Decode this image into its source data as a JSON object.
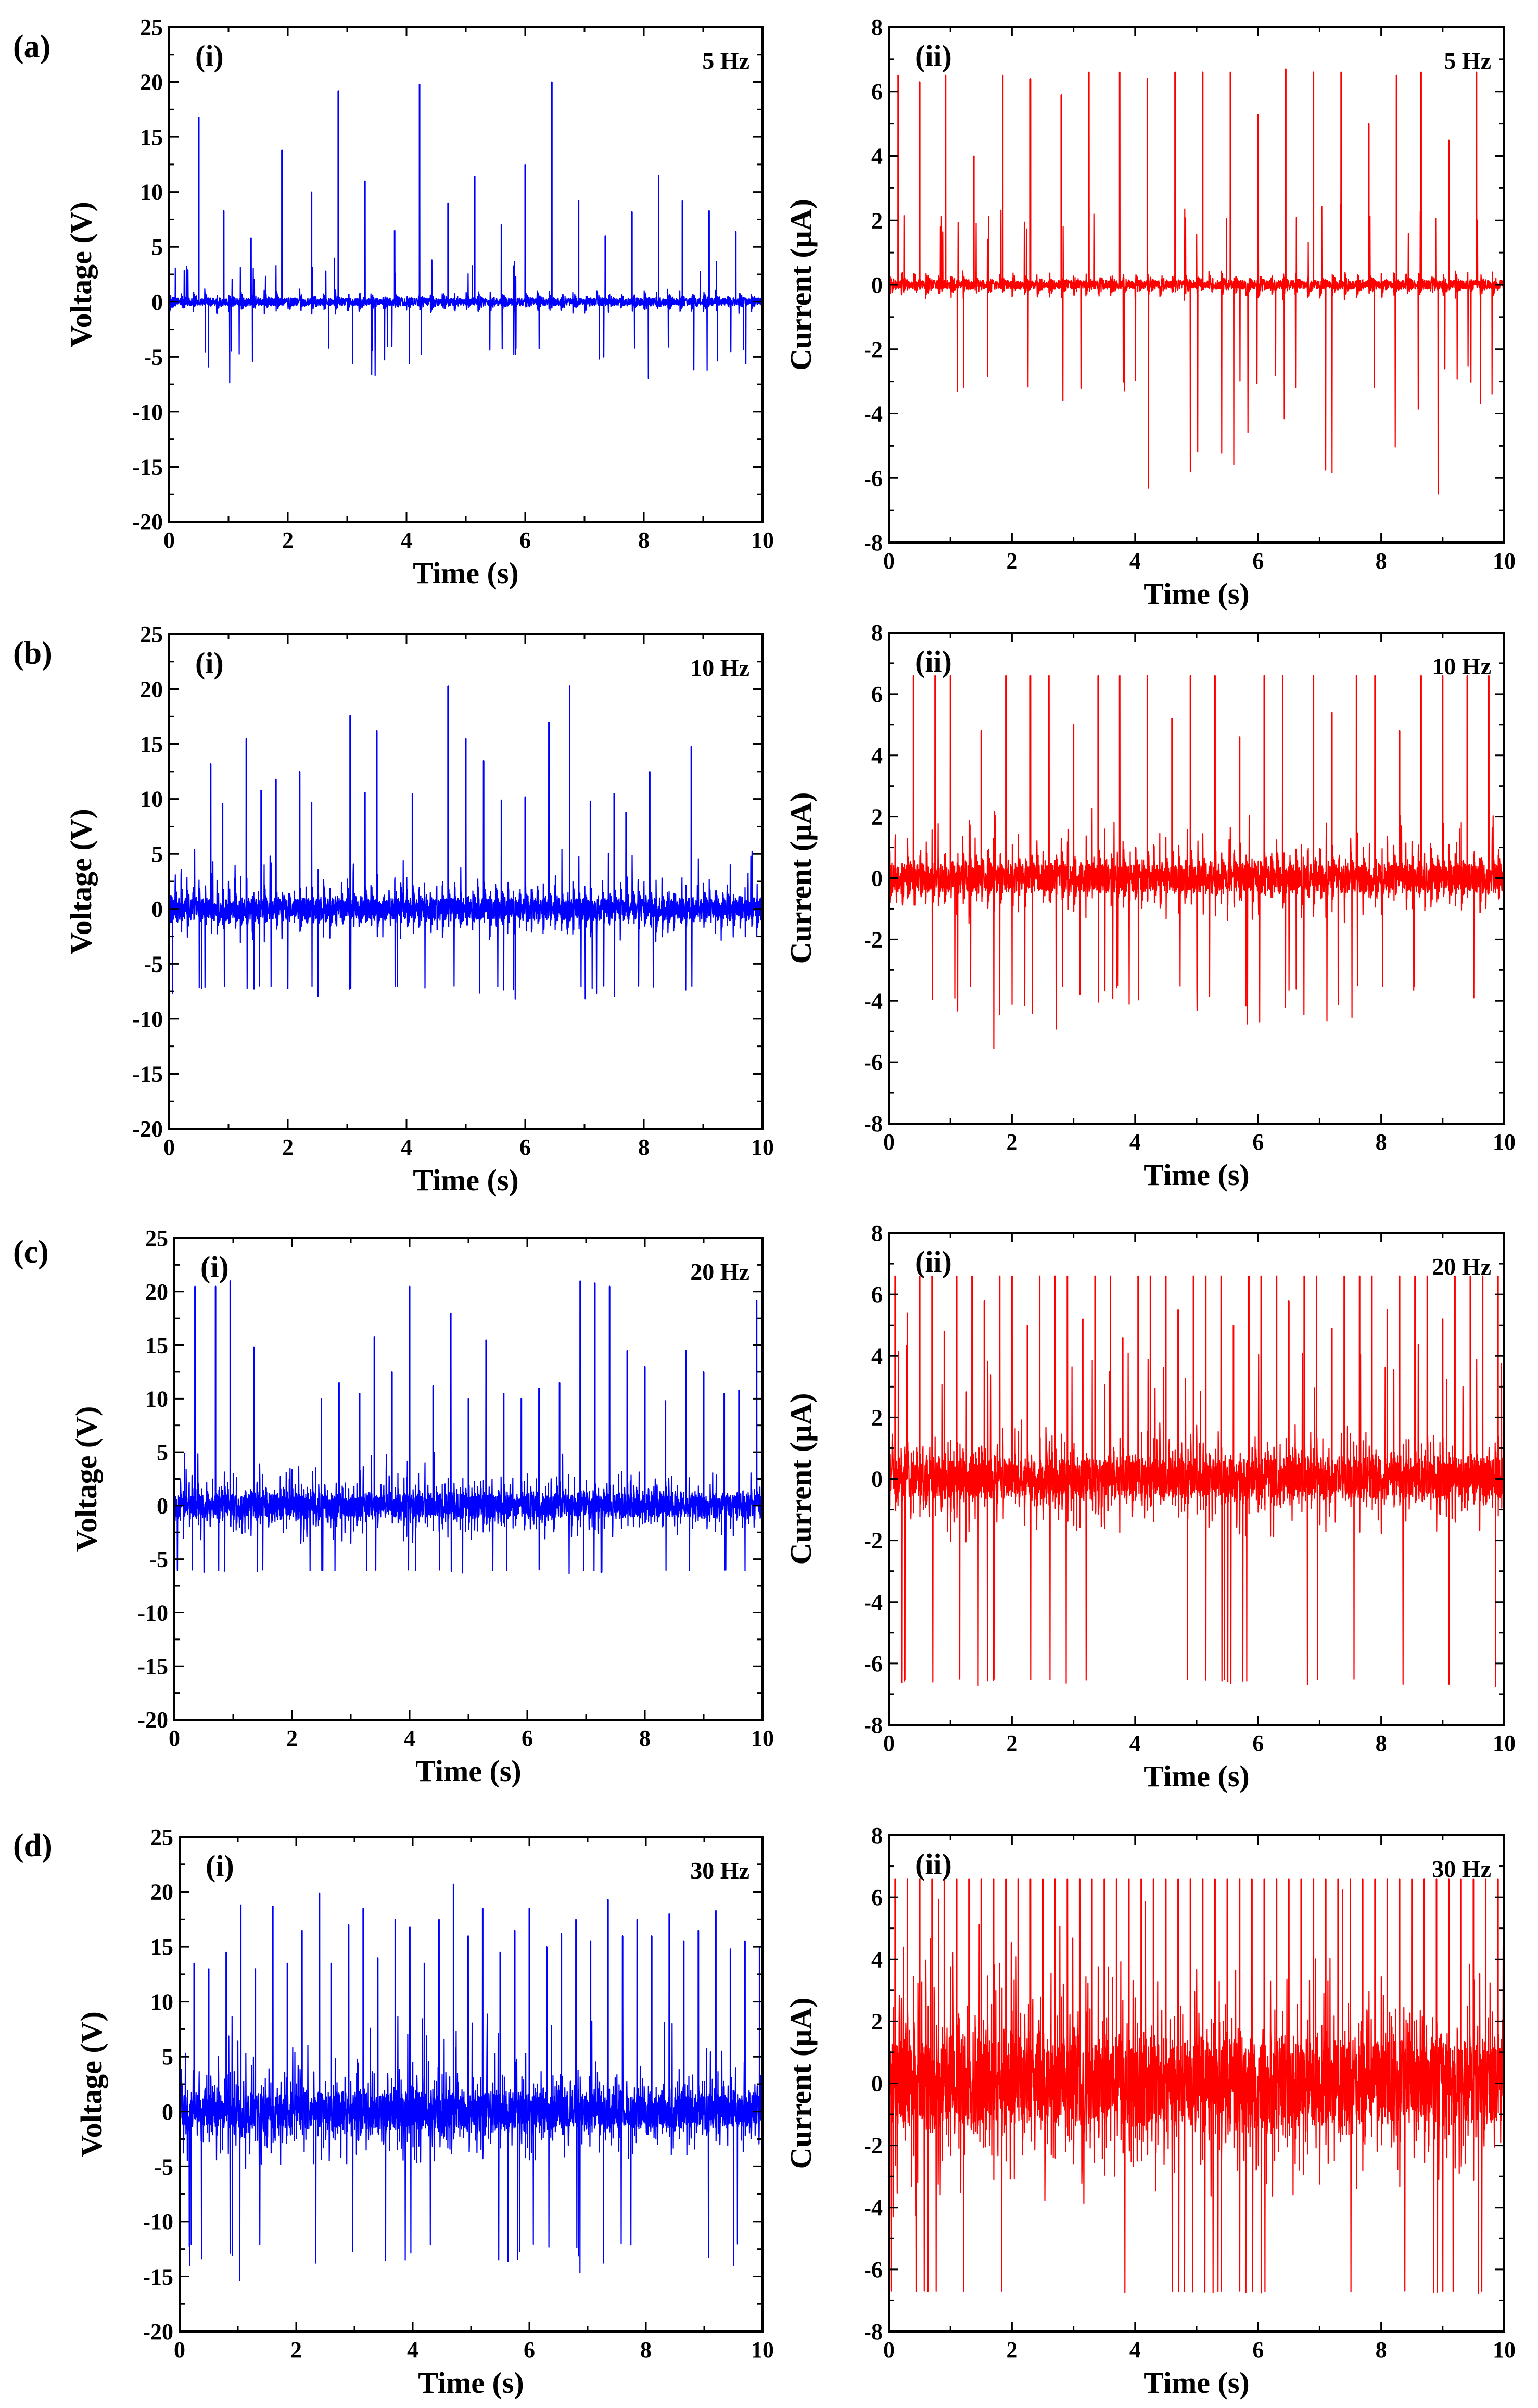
{
  "figure": {
    "panels": [
      {
        "label": "(a)"
      },
      {
        "label": "(b)"
      },
      {
        "label": "(c)"
      },
      {
        "label": "(d)"
      }
    ]
  },
  "chart_data": [
    {
      "type": "line",
      "panel": "(a)",
      "sublabel": "(i)",
      "annotation": "5 Hz",
      "title": "",
      "xlabel": "Time (s)",
      "ylabel": "Voltage (V)",
      "xlim": [
        0,
        10
      ],
      "ylim": [
        -20,
        25
      ],
      "xticks": [
        0,
        2,
        4,
        6,
        8,
        10
      ],
      "yticks": [
        -20,
        -15,
        -10,
        -5,
        0,
        5,
        10,
        15,
        20,
        25
      ],
      "color": "#0000ff",
      "signal": {
        "frequency_hz": 5,
        "baseline": 0,
        "noise_amplitude": 1.2,
        "burst_max": 4,
        "burst_min": -4,
        "spike_min": 6,
        "spike_max": 20,
        "negative_min": -7.5
      },
      "spike_times": [
        0.5,
        0.92,
        1.38,
        1.9,
        2.4,
        2.85,
        3.3,
        3.8,
        4.22,
        4.7,
        5.15,
        5.6,
        6.0,
        6.45,
        6.9,
        7.35,
        7.8,
        8.25,
        8.65,
        9.1,
        9.55
      ],
      "spike_values": [
        16.8,
        8.3,
        5.8,
        13.8,
        10.0,
        19.2,
        11.0,
        6.5,
        19.8,
        9.0,
        11.4,
        7.0,
        12.5,
        20.0,
        9.2,
        6.0,
        8.2,
        11.5,
        9.2,
        8.3,
        6.4
      ]
    },
    {
      "type": "line",
      "panel": "(a)",
      "sublabel": "(ii)",
      "annotation": "5 Hz",
      "title": "",
      "xlabel": "Time (s)",
      "ylabel": "Current (μA)",
      "xlim": [
        0,
        10
      ],
      "ylim": [
        -8,
        8
      ],
      "xticks": [
        0,
        2,
        4,
        6,
        8,
        10
      ],
      "yticks": [
        -8,
        -6,
        -4,
        -2,
        0,
        2,
        4,
        6,
        8
      ],
      "color": "#ff0000",
      "signal": {
        "frequency_hz": 5,
        "baseline": 0,
        "noise_amplitude": 0.5,
        "burst_max": 2.5,
        "burst_min": -2.5,
        "spike_min": 3.5,
        "spike_max": 6.7,
        "negative_min": -6.8
      },
      "spike_times": [
        0.15,
        0.5,
        0.92,
        1.38,
        1.85,
        2.3,
        2.8,
        3.25,
        3.75,
        4.2,
        4.65,
        5.1,
        5.55,
        6.0,
        6.45,
        6.9,
        7.35,
        7.8,
        8.25,
        8.65,
        9.1,
        9.55
      ],
      "spike_values": [
        6.5,
        6.3,
        6.5,
        4.0,
        6.5,
        6.4,
        5.9,
        6.6,
        6.6,
        6.4,
        6.6,
        6.6,
        6.6,
        5.3,
        6.7,
        6.6,
        6.6,
        5.0,
        6.5,
        6.6,
        4.5,
        6.6
      ]
    },
    {
      "type": "line",
      "panel": "(b)",
      "sublabel": "(i)",
      "annotation": "10 Hz",
      "title": "",
      "xlabel": "Time (s)",
      "ylabel": "Voltage (V)",
      "xlim": [
        0,
        10
      ],
      "ylim": [
        -20,
        25
      ],
      "xticks": [
        0,
        2,
        4,
        6,
        8,
        10
      ],
      "yticks": [
        -20,
        -15,
        -10,
        -5,
        0,
        5,
        10,
        15,
        20,
        25
      ],
      "color": "#0000ff",
      "signal": {
        "frequency_hz": 10,
        "baseline": 0,
        "noise_amplitude": 3.5,
        "burst_max": 5.5,
        "burst_min": -7,
        "spike_min": 5,
        "spike_max": 20.3,
        "negative_min": -8.7
      },
      "spike_times": [
        0.7,
        0.9,
        1.3,
        1.55,
        1.8,
        2.2,
        2.4,
        3.05,
        3.3,
        3.5,
        4.1,
        4.7,
        5.0,
        5.3,
        5.6,
        6.0,
        6.4,
        6.75,
        7.1,
        7.5,
        7.7,
        8.1,
        8.8
      ],
      "spike_values": [
        13.2,
        9.6,
        15.5,
        10.8,
        11.8,
        12.5,
        9.7,
        17.6,
        10.6,
        16.2,
        10.5,
        20.3,
        15.5,
        13.5,
        9.9,
        10.2,
        17.0,
        20.3,
        9.8,
        10.5,
        8.8,
        12.5,
        14.8
      ]
    },
    {
      "type": "line",
      "panel": "(b)",
      "sublabel": "(ii)",
      "annotation": "10 Hz",
      "title": "",
      "xlabel": "Time (s)",
      "ylabel": "Current (μA)",
      "xlim": [
        0,
        10
      ],
      "ylim": [
        -8,
        8
      ],
      "xticks": [
        0,
        2,
        4,
        6,
        8,
        10
      ],
      "yticks": [
        -8,
        -6,
        -4,
        -2,
        0,
        2,
        4,
        6,
        8
      ],
      "color": "#ff0000",
      "signal": {
        "frequency_hz": 10,
        "baseline": 0,
        "noise_amplitude": 1.6,
        "burst_max": 2.3,
        "burst_min": -3.5,
        "spike_min": 3,
        "spike_max": 6.6,
        "negative_min": -5.8
      },
      "spike_times": [
        0.4,
        0.75,
        1.0,
        1.5,
        1.9,
        2.3,
        2.6,
        3.0,
        3.4,
        3.75,
        4.2,
        4.6,
        4.9,
        5.3,
        5.7,
        6.1,
        6.4,
        6.9,
        7.2,
        7.6,
        7.9,
        8.3,
        8.65,
        9.0,
        9.4,
        9.75
      ],
      "spike_values": [
        6.6,
        6.6,
        6.6,
        4.8,
        6.6,
        6.6,
        6.6,
        5.0,
        6.6,
        6.6,
        6.6,
        5.2,
        6.6,
        6.6,
        4.6,
        6.6,
        6.6,
        6.6,
        5.4,
        6.6,
        6.6,
        4.8,
        6.6,
        6.6,
        6.6,
        6.6
      ]
    },
    {
      "type": "line",
      "panel": "(c)",
      "sublabel": "(i)",
      "annotation": "20 Hz",
      "title": "",
      "xlabel": "Time (s)",
      "ylabel": "Voltage (V)",
      "xlim": [
        0,
        10
      ],
      "ylim": [
        -20,
        25
      ],
      "xticks": [
        0,
        2,
        4,
        6,
        8,
        10
      ],
      "yticks": [
        -20,
        -15,
        -10,
        -5,
        0,
        5,
        10,
        15,
        20,
        25
      ],
      "color": "#0000ff",
      "signal": {
        "frequency_hz": 20,
        "baseline": 0,
        "noise_amplitude": 3.8,
        "burst_max": 5,
        "burst_min": -6,
        "spike_min": 5,
        "spike_max": 21,
        "negative_min": -6.5
      },
      "spike_times": [
        0.35,
        0.7,
        0.95,
        1.35,
        2.5,
        2.8,
        3.15,
        3.4,
        3.7,
        4.0,
        4.4,
        4.7,
        5.0,
        5.3,
        5.6,
        5.9,
        6.2,
        6.55,
        6.9,
        7.15,
        7.4,
        7.7,
        8.0,
        8.35,
        8.7,
        9.0,
        9.35,
        9.6,
        9.9
      ],
      "spike_values": [
        20.5,
        20.5,
        21.0,
        14.8,
        10.0,
        11.5,
        10.5,
        15.8,
        12.5,
        20.5,
        11.2,
        18.0,
        10.0,
        15.5,
        10.5,
        10.0,
        11.0,
        11.5,
        21.0,
        20.8,
        20.5,
        14.5,
        13.0,
        9.8,
        14.5,
        12.5,
        10.5,
        10.8,
        19.2
      ]
    },
    {
      "type": "line",
      "panel": "(c)",
      "sublabel": "(ii)",
      "annotation": "20 Hz",
      "title": "",
      "xlabel": "Time (s)",
      "ylabel": "Current (μA)",
      "xlim": [
        0,
        10
      ],
      "ylim": [
        -8,
        8
      ],
      "xticks": [
        0,
        2,
        4,
        6,
        8,
        10
      ],
      "yticks": [
        -8,
        -6,
        -4,
        -2,
        0,
        2,
        4,
        6,
        8
      ],
      "color": "#ff0000",
      "signal": {
        "frequency_hz": 20,
        "baseline": 0,
        "noise_amplitude": 2.2,
        "burst_max": 4.5,
        "burst_min": -6.5,
        "spike_min": 3.5,
        "spike_max": 6.6,
        "negative_min": -6.8
      },
      "spike_times": [
        0.1,
        0.3,
        0.5,
        0.7,
        0.9,
        1.1,
        1.35,
        1.55,
        1.8,
        2.0,
        2.25,
        2.45,
        2.7,
        2.9,
        3.15,
        3.35,
        3.6,
        3.8,
        4.05,
        4.25,
        4.5,
        4.7,
        4.95,
        5.15,
        5.4,
        5.6,
        5.85,
        6.05,
        6.3,
        6.5,
        6.75,
        6.95,
        7.2,
        7.4,
        7.65,
        7.85,
        8.1,
        8.3,
        8.55,
        8.75,
        9.0,
        9.2,
        9.45,
        9.65,
        9.9
      ],
      "spike_values": [
        6.6,
        5.4,
        6.6,
        6.6,
        4.8,
        6.6,
        6.6,
        5.8,
        6.6,
        6.6,
        5.0,
        6.6,
        6.6,
        6.6,
        5.2,
        6.6,
        6.6,
        4.6,
        6.6,
        6.6,
        6.6,
        5.5,
        6.6,
        6.6,
        6.6,
        5.0,
        6.6,
        6.6,
        6.6,
        5.8,
        6.6,
        6.6,
        4.9,
        6.6,
        6.6,
        6.6,
        5.5,
        6.6,
        6.6,
        6.6,
        5.2,
        6.6,
        6.6,
        6.6,
        6.6
      ]
    },
    {
      "type": "line",
      "panel": "(d)",
      "sublabel": "(i)",
      "annotation": "30 Hz",
      "title": "",
      "xlabel": "Time (s)",
      "ylabel": "Voltage (V)",
      "xlim": [
        0,
        10
      ],
      "ylim": [
        -20,
        25
      ],
      "xticks": [
        0,
        2,
        4,
        6,
        8,
        10
      ],
      "yticks": [
        -20,
        -15,
        -10,
        -5,
        0,
        5,
        10,
        15,
        20,
        25
      ],
      "color": "#0000ff",
      "signal": {
        "frequency_hz": 30,
        "baseline": 0,
        "noise_amplitude": 5.5,
        "burst_max": 9,
        "burst_min": -12,
        "spike_min": 10,
        "spike_max": 20.7,
        "negative_min": -16
      },
      "spike_times": [
        0.25,
        0.5,
        0.8,
        1.05,
        1.3,
        1.6,
        1.85,
        2.1,
        2.4,
        2.6,
        2.9,
        3.15,
        3.4,
        3.7,
        3.95,
        4.2,
        4.45,
        4.7,
        4.95,
        5.2,
        5.5,
        5.75,
        6.0,
        6.3,
        6.55,
        6.8,
        7.05,
        7.35,
        7.6,
        7.85,
        8.1,
        8.4,
        8.65,
        8.9,
        9.2,
        9.45,
        9.7,
        9.95
      ],
      "spike_values": [
        13.5,
        13.0,
        14.5,
        18.8,
        13.0,
        18.7,
        13.5,
        16.5,
        19.9,
        13.5,
        17.0,
        18.5,
        14.0,
        17.5,
        16.8,
        13.5,
        17.5,
        20.7,
        16.0,
        18.5,
        14.5,
        16.5,
        18.5,
        15.0,
        16.2,
        17.5,
        15.5,
        19.3,
        16.0,
        17.5,
        16.0,
        18.0,
        15.5,
        16.5,
        18.3,
        14.8,
        15.5,
        15.0
      ]
    },
    {
      "type": "line",
      "panel": "(d)",
      "sublabel": "(ii)",
      "annotation": "30 Hz",
      "title": "",
      "xlabel": "Time (s)",
      "ylabel": "Current (μA)",
      "xlim": [
        0,
        10
      ],
      "ylim": [
        -8,
        8
      ],
      "xticks": [
        0,
        2,
        4,
        6,
        8,
        10
      ],
      "yticks": [
        -8,
        -6,
        -4,
        -2,
        0,
        2,
        4,
        6,
        8
      ],
      "color": "#ff0000",
      "signal": {
        "frequency_hz": 30,
        "baseline": 0,
        "noise_amplitude": 4.5,
        "burst_max": 6.5,
        "burst_min": -6.7,
        "spike_min": 5.5,
        "spike_max": 6.7,
        "negative_min": -6.8
      },
      "spike_times": [
        0.1,
        0.3,
        0.5,
        0.7,
        0.9,
        1.1,
        1.3,
        1.5,
        1.7,
        1.9,
        2.1,
        2.3,
        2.5,
        2.7,
        2.9,
        3.1,
        3.3,
        3.5,
        3.7,
        3.9,
        4.1,
        4.3,
        4.5,
        4.7,
        4.9,
        5.1,
        5.3,
        5.5,
        5.7,
        5.9,
        6.1,
        6.3,
        6.5,
        6.7,
        6.9,
        7.1,
        7.3,
        7.5,
        7.7,
        7.9,
        8.1,
        8.3,
        8.5,
        8.7,
        8.9,
        9.1,
        9.3,
        9.5,
        9.7,
        9.9
      ],
      "spike_values": [
        6.6,
        6.6,
        6.6,
        6.6,
        6.6,
        6.6,
        6.6,
        6.6,
        6.6,
        6.6,
        6.6,
        6.6,
        6.6,
        6.6,
        6.6,
        6.6,
        6.6,
        6.6,
        6.6,
        6.6,
        6.6,
        6.6,
        6.6,
        6.6,
        6.6,
        6.6,
        6.6,
        6.6,
        6.6,
        6.6,
        6.6,
        6.6,
        6.6,
        6.6,
        6.6,
        6.6,
        6.6,
        6.6,
        6.6,
        6.6,
        6.6,
        6.6,
        6.6,
        6.6,
        6.6,
        6.6,
        6.6,
        6.6,
        6.6,
        6.6
      ]
    }
  ]
}
